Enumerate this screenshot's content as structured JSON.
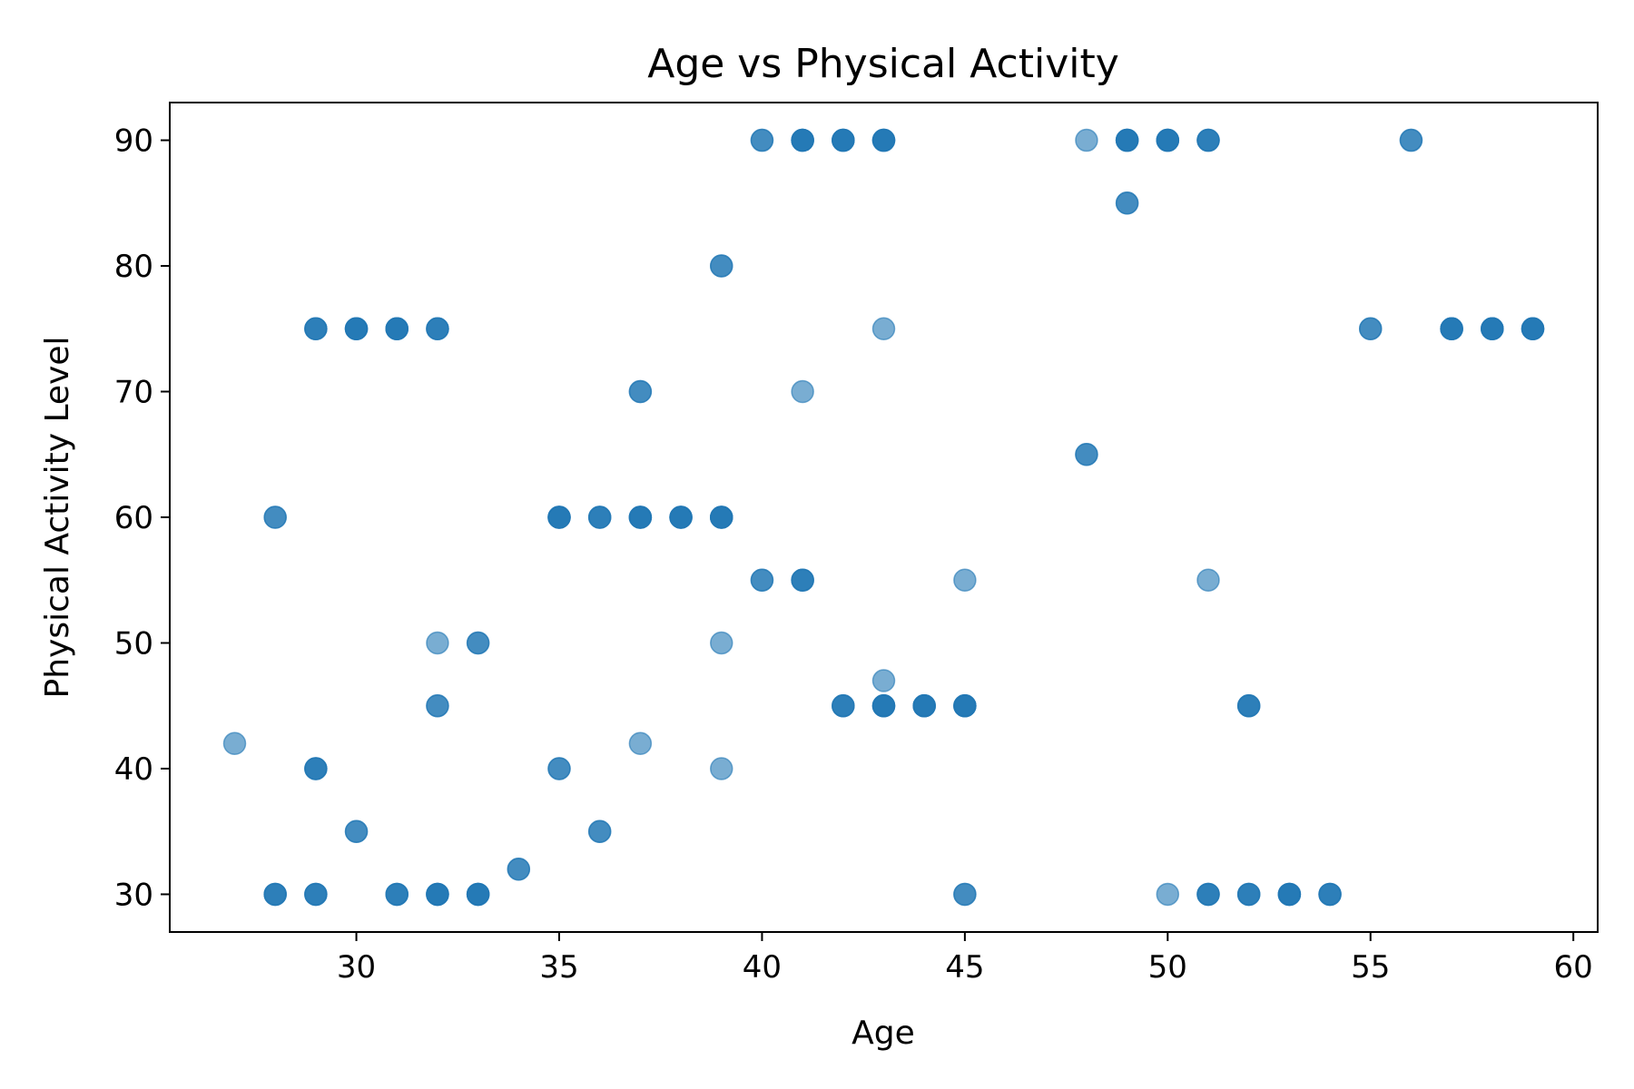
{
  "chart_data": {
    "type": "scatter",
    "title": "Age vs Physical Activity",
    "xlabel": "Age",
    "ylabel": "Physical Activity Level",
    "xlim": [
      25.4,
      60.6
    ],
    "ylim": [
      27.0,
      93.0
    ],
    "xticks": [
      30,
      35,
      40,
      45,
      50,
      55,
      60
    ],
    "yticks": [
      30,
      40,
      50,
      60,
      70,
      80,
      90
    ],
    "grid": false,
    "legend": "none",
    "point_color": "#1f77b4",
    "point_alpha": 0.6,
    "points": [
      {
        "x": 27,
        "y": 42
      },
      {
        "x": 28,
        "y": 60
      },
      {
        "x": 28,
        "y": 60
      },
      {
        "x": 28,
        "y": 30
      },
      {
        "x": 28,
        "y": 30
      },
      {
        "x": 28,
        "y": 30
      },
      {
        "x": 29,
        "y": 75
      },
      {
        "x": 29,
        "y": 75
      },
      {
        "x": 29,
        "y": 75
      },
      {
        "x": 29,
        "y": 40
      },
      {
        "x": 29,
        "y": 40
      },
      {
        "x": 29,
        "y": 40
      },
      {
        "x": 29,
        "y": 30
      },
      {
        "x": 29,
        "y": 30
      },
      {
        "x": 29,
        "y": 30
      },
      {
        "x": 30,
        "y": 75
      },
      {
        "x": 30,
        "y": 75
      },
      {
        "x": 30,
        "y": 75
      },
      {
        "x": 30,
        "y": 75
      },
      {
        "x": 30,
        "y": 35
      },
      {
        "x": 30,
        "y": 35
      },
      {
        "x": 31,
        "y": 75
      },
      {
        "x": 31,
        "y": 75
      },
      {
        "x": 31,
        "y": 75
      },
      {
        "x": 31,
        "y": 75
      },
      {
        "x": 31,
        "y": 30
      },
      {
        "x": 31,
        "y": 30
      },
      {
        "x": 31,
        "y": 30
      },
      {
        "x": 32,
        "y": 75
      },
      {
        "x": 32,
        "y": 75
      },
      {
        "x": 32,
        "y": 75
      },
      {
        "x": 32,
        "y": 50
      },
      {
        "x": 32,
        "y": 45
      },
      {
        "x": 32,
        "y": 45
      },
      {
        "x": 32,
        "y": 30
      },
      {
        "x": 32,
        "y": 30
      },
      {
        "x": 32,
        "y": 30
      },
      {
        "x": 32,
        "y": 30
      },
      {
        "x": 33,
        "y": 50
      },
      {
        "x": 33,
        "y": 50
      },
      {
        "x": 33,
        "y": 30
      },
      {
        "x": 33,
        "y": 30
      },
      {
        "x": 33,
        "y": 30
      },
      {
        "x": 33,
        "y": 30
      },
      {
        "x": 34,
        "y": 32
      },
      {
        "x": 34,
        "y": 32
      },
      {
        "x": 35,
        "y": 60
      },
      {
        "x": 35,
        "y": 60
      },
      {
        "x": 35,
        "y": 60
      },
      {
        "x": 35,
        "y": 60
      },
      {
        "x": 35,
        "y": 40
      },
      {
        "x": 35,
        "y": 40
      },
      {
        "x": 36,
        "y": 60
      },
      {
        "x": 36,
        "y": 60
      },
      {
        "x": 36,
        "y": 60
      },
      {
        "x": 36,
        "y": 35
      },
      {
        "x": 36,
        "y": 35
      },
      {
        "x": 37,
        "y": 70
      },
      {
        "x": 37,
        "y": 70
      },
      {
        "x": 37,
        "y": 60
      },
      {
        "x": 37,
        "y": 60
      },
      {
        "x": 37,
        "y": 60
      },
      {
        "x": 37,
        "y": 60
      },
      {
        "x": 37,
        "y": 42
      },
      {
        "x": 38,
        "y": 60
      },
      {
        "x": 38,
        "y": 60
      },
      {
        "x": 38,
        "y": 60
      },
      {
        "x": 38,
        "y": 60
      },
      {
        "x": 39,
        "y": 80
      },
      {
        "x": 39,
        "y": 80
      },
      {
        "x": 39,
        "y": 60
      },
      {
        "x": 39,
        "y": 60
      },
      {
        "x": 39,
        "y": 60
      },
      {
        "x": 39,
        "y": 60
      },
      {
        "x": 39,
        "y": 50
      },
      {
        "x": 39,
        "y": 40
      },
      {
        "x": 40,
        "y": 90
      },
      {
        "x": 40,
        "y": 90
      },
      {
        "x": 40,
        "y": 55
      },
      {
        "x": 40,
        "y": 55
      },
      {
        "x": 41,
        "y": 90
      },
      {
        "x": 41,
        "y": 90
      },
      {
        "x": 41,
        "y": 90
      },
      {
        "x": 41,
        "y": 90
      },
      {
        "x": 41,
        "y": 70
      },
      {
        "x": 41,
        "y": 55
      },
      {
        "x": 41,
        "y": 55
      },
      {
        "x": 41,
        "y": 55
      },
      {
        "x": 42,
        "y": 90
      },
      {
        "x": 42,
        "y": 90
      },
      {
        "x": 42,
        "y": 90
      },
      {
        "x": 42,
        "y": 90
      },
      {
        "x": 42,
        "y": 45
      },
      {
        "x": 42,
        "y": 45
      },
      {
        "x": 42,
        "y": 45
      },
      {
        "x": 43,
        "y": 90
      },
      {
        "x": 43,
        "y": 90
      },
      {
        "x": 43,
        "y": 90
      },
      {
        "x": 43,
        "y": 90
      },
      {
        "x": 43,
        "y": 75
      },
      {
        "x": 43,
        "y": 47
      },
      {
        "x": 43,
        "y": 45
      },
      {
        "x": 43,
        "y": 45
      },
      {
        "x": 43,
        "y": 45
      },
      {
        "x": 43,
        "y": 45
      },
      {
        "x": 44,
        "y": 45
      },
      {
        "x": 44,
        "y": 45
      },
      {
        "x": 44,
        "y": 45
      },
      {
        "x": 44,
        "y": 45
      },
      {
        "x": 45,
        "y": 55
      },
      {
        "x": 45,
        "y": 45
      },
      {
        "x": 45,
        "y": 45
      },
      {
        "x": 45,
        "y": 45
      },
      {
        "x": 45,
        "y": 45
      },
      {
        "x": 45,
        "y": 30
      },
      {
        "x": 45,
        "y": 30
      },
      {
        "x": 48,
        "y": 90
      },
      {
        "x": 48,
        "y": 65
      },
      {
        "x": 48,
        "y": 65
      },
      {
        "x": 49,
        "y": 90
      },
      {
        "x": 49,
        "y": 90
      },
      {
        "x": 49,
        "y": 90
      },
      {
        "x": 49,
        "y": 90
      },
      {
        "x": 49,
        "y": 85
      },
      {
        "x": 49,
        "y": 85
      },
      {
        "x": 50,
        "y": 90
      },
      {
        "x": 50,
        "y": 90
      },
      {
        "x": 50,
        "y": 90
      },
      {
        "x": 50,
        "y": 90
      },
      {
        "x": 50,
        "y": 30
      },
      {
        "x": 51,
        "y": 90
      },
      {
        "x": 51,
        "y": 90
      },
      {
        "x": 51,
        "y": 90
      },
      {
        "x": 51,
        "y": 55
      },
      {
        "x": 51,
        "y": 30
      },
      {
        "x": 51,
        "y": 30
      },
      {
        "x": 51,
        "y": 30
      },
      {
        "x": 52,
        "y": 45
      },
      {
        "x": 52,
        "y": 45
      },
      {
        "x": 52,
        "y": 45
      },
      {
        "x": 52,
        "y": 30
      },
      {
        "x": 52,
        "y": 30
      },
      {
        "x": 52,
        "y": 30
      },
      {
        "x": 53,
        "y": 30
      },
      {
        "x": 53,
        "y": 30
      },
      {
        "x": 53,
        "y": 30
      },
      {
        "x": 53,
        "y": 30
      },
      {
        "x": 54,
        "y": 30
      },
      {
        "x": 54,
        "y": 30
      },
      {
        "x": 54,
        "y": 30
      },
      {
        "x": 55,
        "y": 75
      },
      {
        "x": 55,
        "y": 75
      },
      {
        "x": 56,
        "y": 90
      },
      {
        "x": 56,
        "y": 90
      },
      {
        "x": 57,
        "y": 75
      },
      {
        "x": 57,
        "y": 75
      },
      {
        "x": 57,
        "y": 75
      },
      {
        "x": 57,
        "y": 75
      },
      {
        "x": 58,
        "y": 75
      },
      {
        "x": 58,
        "y": 75
      },
      {
        "x": 58,
        "y": 75
      },
      {
        "x": 58,
        "y": 75
      },
      {
        "x": 59,
        "y": 75
      },
      {
        "x": 59,
        "y": 75
      },
      {
        "x": 59,
        "y": 75
      },
      {
        "x": 59,
        "y": 75
      }
    ]
  }
}
